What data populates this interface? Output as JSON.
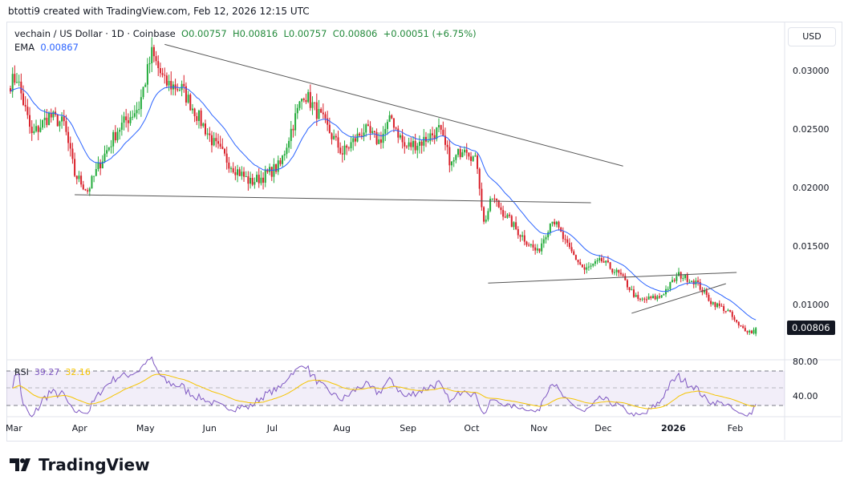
{
  "header": "btotti9 created with TradingView.com, Feb 12, 2026 12:15 UTC",
  "legend": {
    "symbol": "vechain / US Dollar · 1D · Coinbase",
    "o": "O0.00757",
    "h": "H0.00816",
    "l": "L0.00757",
    "c": "C0.00806",
    "chg": "+0.00051 (+6.75%)"
  },
  "ema": {
    "label": "EMA",
    "value": "0.00867"
  },
  "rsi": {
    "label": "RSI",
    "value": "39.27",
    "ma": "32.16"
  },
  "currency": "USD",
  "logo": "TradingView",
  "colors": {
    "up": "#22ab3a",
    "down": "#d9202a",
    "ema": "#2962ff",
    "rsi": "#7e57c2",
    "rsi_ma": "#f5c400"
  },
  "chart_data": {
    "type": "candlestick",
    "price_ticks": [
      "0.03000",
      "0.02500",
      "0.02000",
      "0.01500",
      "0.01000"
    ],
    "price_tick_values": [
      0.03,
      0.025,
      0.02,
      0.015,
      0.01
    ],
    "last_price": "0.00806",
    "rsi_ticks": [
      "80.00",
      "40.00"
    ],
    "time_labels": [
      "Mar",
      "Apr",
      "May",
      "Jun",
      "Jul",
      "Aug",
      "Sep",
      "Oct",
      "Nov",
      "Dec",
      "2026",
      "Feb"
    ],
    "time_label_days": [
      0,
      31,
      61,
      92,
      122,
      153,
      184,
      214,
      245,
      275,
      306,
      337
    ],
    "close_keypoints": [
      [
        0,
        0.029
      ],
      [
        3,
        0.0295
      ],
      [
        10,
        0.0245
      ],
      [
        18,
        0.0262
      ],
      [
        25,
        0.0255
      ],
      [
        30,
        0.0212
      ],
      [
        36,
        0.0198
      ],
      [
        42,
        0.0222
      ],
      [
        50,
        0.025
      ],
      [
        60,
        0.027
      ],
      [
        66,
        0.0315
      ],
      [
        72,
        0.029
      ],
      [
        80,
        0.0285
      ],
      [
        88,
        0.026
      ],
      [
        95,
        0.0238
      ],
      [
        103,
        0.022
      ],
      [
        112,
        0.0205
      ],
      [
        118,
        0.021
      ],
      [
        126,
        0.022
      ],
      [
        131,
        0.025
      ],
      [
        137,
        0.0282
      ],
      [
        145,
        0.026
      ],
      [
        155,
        0.023
      ],
      [
        165,
        0.025
      ],
      [
        172,
        0.024
      ],
      [
        178,
        0.026
      ],
      [
        184,
        0.0235
      ],
      [
        192,
        0.024
      ],
      [
        200,
        0.025
      ],
      [
        206,
        0.022
      ],
      [
        212,
        0.0238
      ],
      [
        218,
        0.022
      ],
      [
        221,
        0.017
      ],
      [
        225,
        0.0192
      ],
      [
        236,
        0.0165
      ],
      [
        246,
        0.0145
      ],
      [
        253,
        0.0175
      ],
      [
        260,
        0.015
      ],
      [
        268,
        0.013
      ],
      [
        276,
        0.0138
      ],
      [
        285,
        0.0125
      ],
      [
        293,
        0.0104
      ],
      [
        303,
        0.0107
      ],
      [
        312,
        0.0126
      ],
      [
        320,
        0.012
      ],
      [
        327,
        0.0103
      ],
      [
        335,
        0.0095
      ],
      [
        340,
        0.0082
      ],
      [
        346,
        0.0077
      ],
      [
        348,
        0.00806
      ]
    ],
    "trendlines": [
      [
        [
          72,
          0.0323
        ],
        [
          286,
          0.0219
        ]
      ],
      [
        [
          30,
          0.01945
        ],
        [
          271,
          0.01877
        ]
      ],
      [
        [
          223,
          0.0119
        ],
        [
          339,
          0.01281
        ]
      ],
      [
        [
          290,
          0.00932
        ],
        [
          334,
          0.01185
        ]
      ]
    ],
    "ema_period": 20,
    "rsi_period": 14
  }
}
